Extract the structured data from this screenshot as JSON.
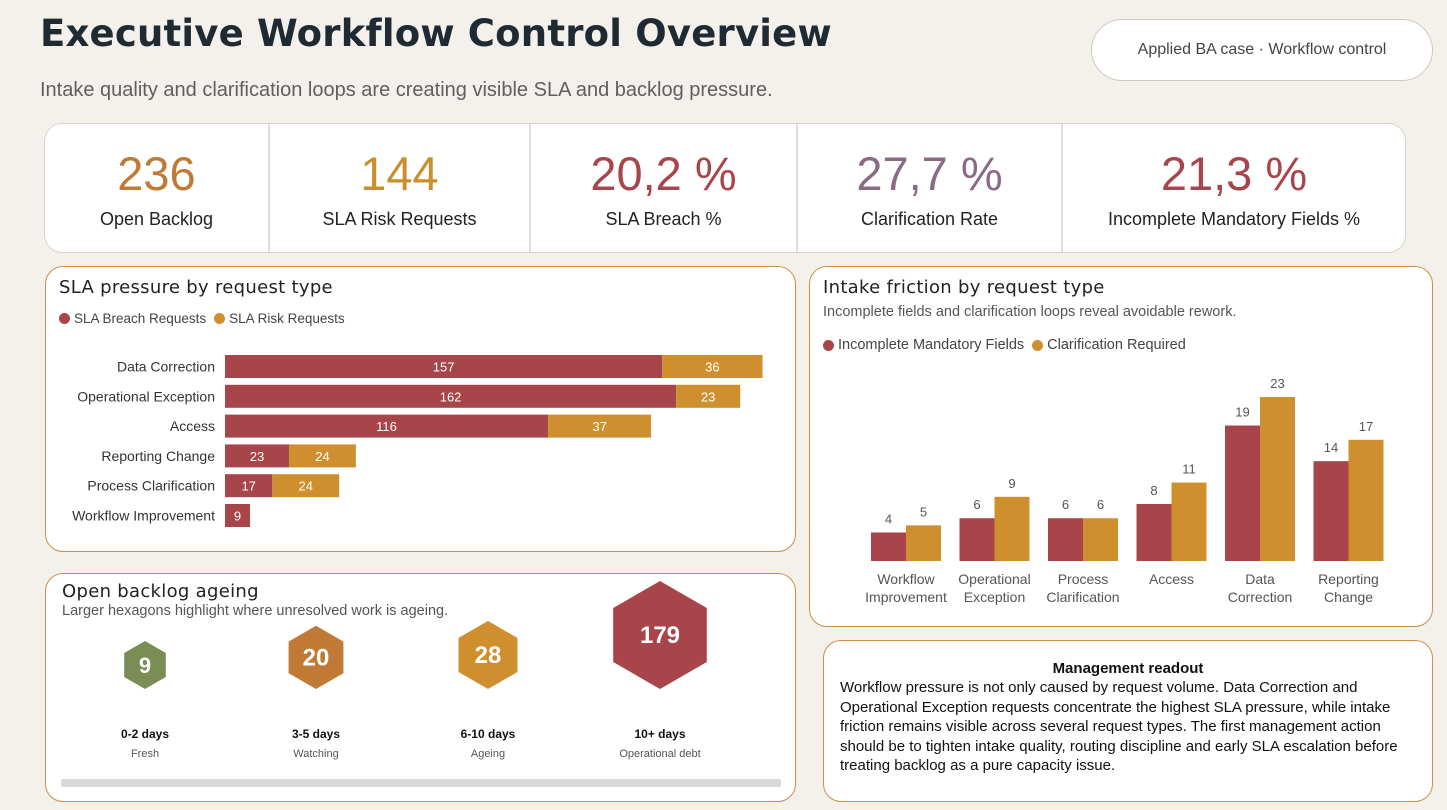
{
  "header": {
    "title": "Executive Workflow Control Overview",
    "subtitle": "Intake quality and clarification loops are creating visible SLA and backlog pressure.",
    "case_label": "Applied BA case · Workflow control"
  },
  "kpis": [
    {
      "value": "236",
      "label": "Open Backlog",
      "color": "#c07a35"
    },
    {
      "value": "144",
      "label": "SLA Risk Requests",
      "color": "#c98f2f"
    },
    {
      "value": "20,2 %",
      "label": "SLA Breach %",
      "color": "#a8454a"
    },
    {
      "value": "27,7 %",
      "label": "Clarification Rate",
      "color": "#8b6a85"
    },
    {
      "value": "21,3 %",
      "label": "Incomplete Mandatory Fields %",
      "color": "#a8454a"
    }
  ],
  "colors": {
    "breach": "#a8454a",
    "risk": "#cf8f2e",
    "accent_border": "#cf8f43"
  },
  "sla_panel": {
    "title": "SLA pressure by request type",
    "legend": [
      "SLA Breach Requests",
      "SLA Risk Requests"
    ]
  },
  "friction_panel": {
    "title": "Intake friction by request type",
    "subtitle": "Incomplete fields and clarification loops reveal avoidable rework.",
    "legend": [
      "Incomplete Mandatory Fields",
      "Clarification Required"
    ]
  },
  "chart_data": [
    {
      "type": "bar",
      "orientation": "horizontal",
      "stacked": true,
      "title": "SLA pressure by request type",
      "categories": [
        "Data Correction",
        "Operational Exception",
        "Access",
        "Reporting Change",
        "Process Clarification",
        "Workflow Improvement"
      ],
      "series": [
        {
          "name": "SLA Breach Requests",
          "values": [
            157,
            162,
            116,
            23,
            17,
            9
          ]
        },
        {
          "name": "SLA Risk Requests",
          "values": [
            36,
            23,
            37,
            24,
            24,
            null
          ]
        }
      ],
      "legend": "top-left"
    },
    {
      "type": "bar",
      "orientation": "vertical",
      "stacked": false,
      "title": "Intake friction by request type",
      "categories": [
        [
          "Workflow",
          "Improvement"
        ],
        [
          "Operational",
          "Exception"
        ],
        [
          "Process",
          "Clarification"
        ],
        [
          "Access"
        ],
        [
          "Data",
          "Correction"
        ],
        [
          "Reporting",
          "Change"
        ]
      ],
      "series": [
        {
          "name": "Incomplete Mandatory Fields",
          "values": [
            4,
            6,
            6,
            8,
            19,
            14
          ]
        },
        {
          "name": "Clarification Required",
          "values": [
            5,
            9,
            6,
            11,
            23,
            17
          ]
        }
      ],
      "legend": "top-left"
    }
  ],
  "ageing": {
    "title": "Open backlog ageing",
    "subtitle": "Larger hexagons highlight where unresolved work is ageing.",
    "buckets": [
      {
        "value": "9",
        "range": "0-2 days",
        "status": "Fresh",
        "color": "#7b8c55"
      },
      {
        "value": "20",
        "range": "3-5 days",
        "status": "Watching",
        "color": "#c07a35"
      },
      {
        "value": "28",
        "range": "6-10 days",
        "status": "Ageing",
        "color": "#cf8f2e"
      },
      {
        "value": "179",
        "range": "10+ days",
        "status": "Operational debt",
        "color": "#a8454a"
      }
    ]
  },
  "readout": {
    "title": "Management readout",
    "body": "Workflow pressure is not only caused by request volume. Data Correction and Operational Exception requests concentrate the highest SLA pressure, while intake friction remains visible across several request types. The first management action should be to tighten intake quality, routing discipline and early SLA escalation before treating backlog as a pure capacity issue."
  }
}
